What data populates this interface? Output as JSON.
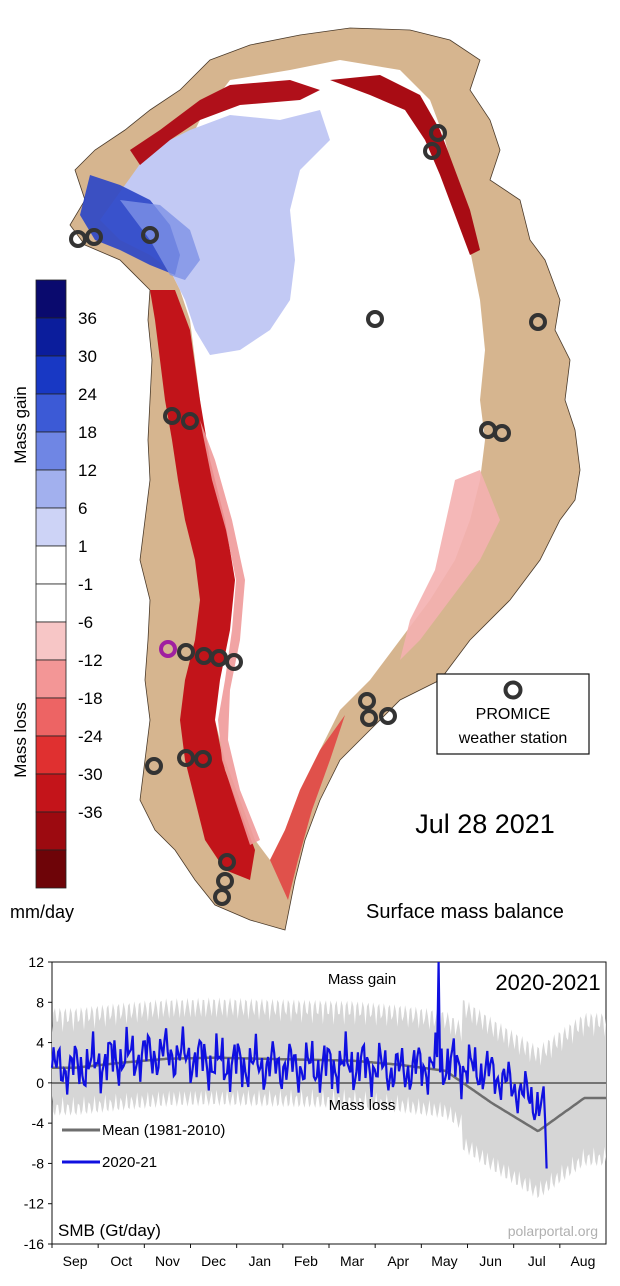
{
  "map": {
    "date": "Jul 28 2021",
    "caption": "Surface mass balance",
    "legend_box": {
      "line1": "PROMICE",
      "line2": "weather station"
    },
    "colorbar": {
      "gain_label": "Mass gain",
      "loss_label": "Mass loss",
      "unit": "mm/day",
      "ticks": [
        "36",
        "30",
        "24",
        "18",
        "12",
        "6",
        "1",
        "-1",
        "-6",
        "-12",
        "-18",
        "-24",
        "-30",
        "-36"
      ],
      "colors": [
        "#0a0a6e",
        "#0b1d9c",
        "#1838c4",
        "#3c5ad6",
        "#6f86e4",
        "#a2b0ee",
        "#cdd3f6",
        "#ffffff",
        "#ffffff",
        "#f7c6c6",
        "#f39696",
        "#ed6464",
        "#e03030",
        "#c4141a",
        "#9c0a10",
        "#6e0408"
      ]
    },
    "colors": {
      "land": "#d6b58f",
      "ice": "#ffffff",
      "gain": "#b9c3f2",
      "loss": "#c2141a",
      "station_ring": "#333333",
      "highlight_station": "#a020a0"
    }
  },
  "chart": {
    "season_label": "2020-2021",
    "gain_label": "Mass gain",
    "loss_label": "Mass loss",
    "ylabel": "SMB (Gt/day)",
    "watermark": "polarportal.org",
    "legend": {
      "mean": "Mean (1981-2010)",
      "current": "2020-21"
    },
    "y_ticks": [
      "12",
      "8",
      "4",
      "0",
      "-4",
      "-8",
      "-12",
      "-16"
    ],
    "months": [
      "Sep",
      "Oct",
      "Nov",
      "Dec",
      "Jan",
      "Feb",
      "Mar",
      "Apr",
      "May",
      "Jun",
      "Jul",
      "Aug"
    ]
  },
  "chart_data": {
    "type": "line",
    "title": "2020-2021",
    "ylabel": "SMB (Gt/day)",
    "ylim": [
      -16,
      12
    ],
    "x_categories": [
      "Sep",
      "Oct",
      "Nov",
      "Dec",
      "Jan",
      "Feb",
      "Mar",
      "Apr",
      "May",
      "Jun",
      "Jul",
      "Aug"
    ],
    "series": [
      {
        "name": "Mean (1981-2010)",
        "color": "#6e6e6e",
        "values_by_month": [
          1.5,
          2.0,
          2.4,
          2.5,
          2.4,
          2.3,
          2.2,
          1.8,
          1.2,
          -2.0,
          -4.8,
          -1.5
        ]
      },
      {
        "name": "2020-21",
        "color": "#1010e0",
        "values_by_month": [
          1.5,
          2.5,
          3.0,
          2.0,
          1.8,
          1.6,
          1.8,
          1.2,
          2.0,
          1.0,
          -2.0,
          -8.5
        ],
        "peak": {
          "month": "May",
          "value": 12
        }
      }
    ]
  }
}
